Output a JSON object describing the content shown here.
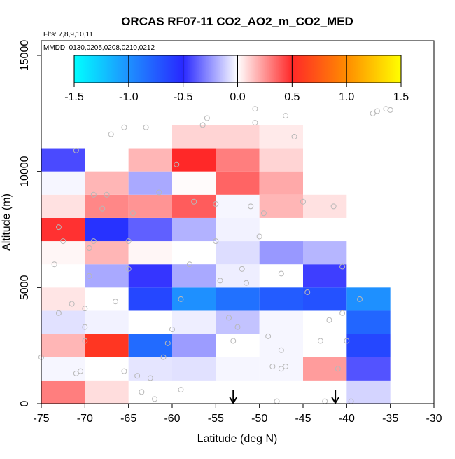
{
  "chart_data": {
    "type": "heatmap",
    "title": "ORCAS RF07-11 CO2_AO2_m_CO2_MED",
    "flights_label": "Flts: 7,8,9,10,11",
    "dates_label": "MMDD: 0130,0205,0208,0210,0212",
    "xlabel": "Latitude (deg N)",
    "ylabel": "Altitude (m)",
    "xlim": [
      -75,
      -30
    ],
    "ylim": [
      0,
      16000
    ],
    "x_ticks": [
      -75,
      -70,
      -65,
      -60,
      -55,
      -50,
      -45,
      -40,
      -35,
      -30
    ],
    "x_tick_labels": [
      "-75",
      "-70",
      "-65",
      "-60",
      "-55",
      "-50",
      "-45",
      "-40",
      "-35",
      "-30"
    ],
    "y_ticks": [
      0,
      5000,
      10000,
      15000
    ],
    "y_tick_labels": [
      "0",
      "5000",
      "10000",
      "15000"
    ],
    "colorbar": {
      "range": [
        -1.5,
        1.5
      ],
      "ticks": [
        -1.5,
        -1.0,
        -0.5,
        0.0,
        0.5,
        1.0,
        1.5
      ],
      "tick_labels": [
        "-1.5",
        "-1.0",
        "-0.5",
        "0.0",
        "0.5",
        "1.0",
        "1.5"
      ],
      "colors": [
        {
          "value": -1.5,
          "color": "#00ffff"
        },
        {
          "value": -1.0,
          "color": "#1e90ff"
        },
        {
          "value": -0.5,
          "color": "#2828ff"
        },
        {
          "value": 0.0,
          "color": "#ffffff"
        },
        {
          "value": 0.5,
          "color": "#ff2828"
        },
        {
          "value": 1.0,
          "color": "#ff8c00"
        },
        {
          "value": 1.5,
          "color": "#ffff00"
        }
      ]
    },
    "cell_width_deg": 5,
    "cell_height_m": 1000,
    "cells": [
      {
        "lat": -75,
        "alt": 0,
        "value": 0.3
      },
      {
        "lat": -70,
        "alt": 0,
        "value": 0.08
      },
      {
        "lat": -40,
        "alt": 0,
        "value": -0.1
      },
      {
        "lat": -75,
        "alt": 1000,
        "value": -0.02
      },
      {
        "lat": -65,
        "alt": 1000,
        "value": -0.06
      },
      {
        "lat": -60,
        "alt": 1000,
        "value": -0.07
      },
      {
        "lat": -55,
        "alt": 1000,
        "value": -0.02
      },
      {
        "lat": -50,
        "alt": 1000,
        "value": -0.02
      },
      {
        "lat": -45,
        "alt": 1000,
        "value": 0.23
      },
      {
        "lat": -40,
        "alt": 1000,
        "value": -0.4
      },
      {
        "lat": -75,
        "alt": 2000,
        "value": 0.17
      },
      {
        "lat": -70,
        "alt": 2000,
        "value": 0.57
      },
      {
        "lat": -65,
        "alt": 2000,
        "value": -0.82
      },
      {
        "lat": -60,
        "alt": 2000,
        "value": -0.23
      },
      {
        "lat": -50,
        "alt": 2000,
        "value": -0.02
      },
      {
        "lat": -40,
        "alt": 2000,
        "value": -0.65
      },
      {
        "lat": -75,
        "alt": 3000,
        "value": -0.07
      },
      {
        "lat": -70,
        "alt": 3000,
        "value": -0.03
      },
      {
        "lat": -60,
        "alt": 3000,
        "value": -0.04
      },
      {
        "lat": -55,
        "alt": 3000,
        "value": -0.14
      },
      {
        "lat": -50,
        "alt": 3000,
        "value": -0.02
      },
      {
        "lat": -40,
        "alt": 3000,
        "value": -0.8
      },
      {
        "lat": -75,
        "alt": 4000,
        "value": 0.06
      },
      {
        "lat": -65,
        "alt": 4000,
        "value": -0.65
      },
      {
        "lat": -60,
        "alt": 4000,
        "value": -1.0
      },
      {
        "lat": -55,
        "alt": 4000,
        "value": -0.85
      },
      {
        "lat": -50,
        "alt": 4000,
        "value": -0.75
      },
      {
        "lat": -45,
        "alt": 4000,
        "value": -0.7
      },
      {
        "lat": -40,
        "alt": 4000,
        "value": -1.0
      },
      {
        "lat": -70,
        "alt": 5000,
        "value": -0.2
      },
      {
        "lat": -65,
        "alt": 5000,
        "value": -0.47
      },
      {
        "lat": -60,
        "alt": 5000,
        "value": -0.2
      },
      {
        "lat": -55,
        "alt": 5000,
        "value": -0.04
      },
      {
        "lat": -45,
        "alt": 5000,
        "value": -0.45
      },
      {
        "lat": -75,
        "alt": 6000,
        "value": 0.02
      },
      {
        "lat": -70,
        "alt": 6000,
        "value": 0.17
      },
      {
        "lat": -65,
        "alt": 6000,
        "value": 0.02
      },
      {
        "lat": -55,
        "alt": 6000,
        "value": -0.08
      },
      {
        "lat": -50,
        "alt": 6000,
        "value": -0.24
      },
      {
        "lat": -45,
        "alt": 6000,
        "value": -0.17
      },
      {
        "lat": -75,
        "alt": 7000,
        "value": 0.48
      },
      {
        "lat": -70,
        "alt": 7000,
        "value": -0.55
      },
      {
        "lat": -65,
        "alt": 7000,
        "value": -0.37
      },
      {
        "lat": -60,
        "alt": 7000,
        "value": -0.18
      },
      {
        "lat": -55,
        "alt": 7000,
        "value": -0.03
      },
      {
        "lat": -75,
        "alt": 8000,
        "value": 0.07
      },
      {
        "lat": -70,
        "alt": 8000,
        "value": 0.28
      },
      {
        "lat": -65,
        "alt": 8000,
        "value": 0.25
      },
      {
        "lat": -60,
        "alt": 8000,
        "value": 0.38
      },
      {
        "lat": -55,
        "alt": 8000,
        "value": -0.02
      },
      {
        "lat": -50,
        "alt": 8000,
        "value": 0.17
      },
      {
        "lat": -45,
        "alt": 8000,
        "value": 0.07
      },
      {
        "lat": -75,
        "alt": 9000,
        "value": -0.02
      },
      {
        "lat": -70,
        "alt": 9000,
        "value": 0.17
      },
      {
        "lat": -65,
        "alt": 9000,
        "value": -0.2
      },
      {
        "lat": -60,
        "alt": 9000,
        "value": 0.01
      },
      {
        "lat": -55,
        "alt": 9000,
        "value": 0.36
      },
      {
        "lat": -50,
        "alt": 9000,
        "value": 0.2
      },
      {
        "lat": -75,
        "alt": 10000,
        "value": -0.42
      },
      {
        "lat": -65,
        "alt": 10000,
        "value": 0.17
      },
      {
        "lat": -60,
        "alt": 10000,
        "value": 0.5
      },
      {
        "lat": -55,
        "alt": 10000,
        "value": 0.3
      },
      {
        "lat": -50,
        "alt": 10000,
        "value": 0.1
      },
      {
        "lat": -60,
        "alt": 11000,
        "value": 0.1
      },
      {
        "lat": -55,
        "alt": 11000,
        "value": 0.1
      },
      {
        "lat": -50,
        "alt": 11000,
        "value": 0.05
      }
    ],
    "flight_points": [
      {
        "lat": -75.0,
        "alt": 2000
      },
      {
        "lat": -73.5,
        "alt": 6000
      },
      {
        "lat": -73.0,
        "alt": 7600
      },
      {
        "lat": -73.0,
        "alt": 3900
      },
      {
        "lat": -71.5,
        "alt": 4300
      },
      {
        "lat": -71.0,
        "alt": 10900
      },
      {
        "lat": -71.0,
        "alt": 1300
      },
      {
        "lat": -72.5,
        "alt": 7000
      },
      {
        "lat": -70.5,
        "alt": 1400
      },
      {
        "lat": -70.0,
        "alt": 4100
      },
      {
        "lat": -70.0,
        "alt": 3300
      },
      {
        "lat": -70.0,
        "alt": 2700
      },
      {
        "lat": -69.5,
        "alt": 5500
      },
      {
        "lat": -69.5,
        "alt": 6700
      },
      {
        "lat": -69.0,
        "alt": 7000
      },
      {
        "lat": -69.0,
        "alt": 9000
      },
      {
        "lat": -68.0,
        "alt": 8400
      },
      {
        "lat": -67.5,
        "alt": 9000
      },
      {
        "lat": -67.0,
        "alt": 11600
      },
      {
        "lat": -66.5,
        "alt": 4400
      },
      {
        "lat": -65.5,
        "alt": 1400
      },
      {
        "lat": -65.0,
        "alt": 5800
      },
      {
        "lat": -65.0,
        "alt": 7000
      },
      {
        "lat": -65.5,
        "alt": 11900
      },
      {
        "lat": -64.5,
        "alt": 8200
      },
      {
        "lat": -64.0,
        "alt": 1200
      },
      {
        "lat": -63.5,
        "alt": 500
      },
      {
        "lat": -63.0,
        "alt": 11900
      },
      {
        "lat": -62.5,
        "alt": 1100
      },
      {
        "lat": -62.0,
        "alt": 200
      },
      {
        "lat": -61.5,
        "alt": 9100
      },
      {
        "lat": -61.0,
        "alt": 2000
      },
      {
        "lat": -60.5,
        "alt": 2600
      },
      {
        "lat": -60.0,
        "alt": 3200
      },
      {
        "lat": -59.5,
        "alt": 10300
      },
      {
        "lat": -59.0,
        "alt": 4500
      },
      {
        "lat": -59.0,
        "alt": 600
      },
      {
        "lat": -58.0,
        "alt": 6000
      },
      {
        "lat": -57.5,
        "alt": 8700
      },
      {
        "lat": -56.5,
        "alt": 12000
      },
      {
        "lat": -56.0,
        "alt": 12300
      },
      {
        "lat": -55.0,
        "alt": 8600
      },
      {
        "lat": -55.0,
        "alt": 7000
      },
      {
        "lat": -54.5,
        "alt": 5300
      },
      {
        "lat": -53.5,
        "alt": 3700
      },
      {
        "lat": -53.0,
        "alt": 2700
      },
      {
        "lat": -52.5,
        "alt": 3300
      },
      {
        "lat": -52.0,
        "alt": 5800
      },
      {
        "lat": -51.5,
        "alt": 5200
      },
      {
        "lat": -51.0,
        "alt": 8500
      },
      {
        "lat": -50.5,
        "alt": 12700
      },
      {
        "lat": -50.5,
        "alt": 12100
      },
      {
        "lat": -50.0,
        "alt": 7200
      },
      {
        "lat": -49.5,
        "alt": 8200
      },
      {
        "lat": -49.0,
        "alt": 2900
      },
      {
        "lat": -48.5,
        "alt": 1600
      },
      {
        "lat": -48.0,
        "alt": 100
      },
      {
        "lat": -47.5,
        "alt": 1500
      },
      {
        "lat": -47.5,
        "alt": 2300
      },
      {
        "lat": -47.0,
        "alt": 1600
      },
      {
        "lat": -47.0,
        "alt": 12400
      },
      {
        "lat": -47.5,
        "alt": 5600
      },
      {
        "lat": -46.0,
        "alt": 11500
      },
      {
        "lat": -45.0,
        "alt": 8700
      },
      {
        "lat": -44.5,
        "alt": 4800
      },
      {
        "lat": -43.0,
        "alt": 2700
      },
      {
        "lat": -42.5,
        "alt": 100
      },
      {
        "lat": -42.0,
        "alt": 3600
      },
      {
        "lat": -41.5,
        "alt": 8500
      },
      {
        "lat": -41.0,
        "alt": 1500
      },
      {
        "lat": -40.5,
        "alt": 3900
      },
      {
        "lat": -40.5,
        "alt": 5900
      },
      {
        "lat": -40.0,
        "alt": 2700
      },
      {
        "lat": -39.5,
        "alt": 100
      },
      {
        "lat": -38.5,
        "alt": 4500
      },
      {
        "lat": -37.0,
        "alt": 12500
      },
      {
        "lat": -36.5,
        "alt": 12600
      },
      {
        "lat": -35.5,
        "alt": 12700
      },
      {
        "lat": -35.0,
        "alt": 12650
      }
    ],
    "arrows": [
      {
        "lat": -53.0
      },
      {
        "lat": -41.3
      }
    ]
  }
}
